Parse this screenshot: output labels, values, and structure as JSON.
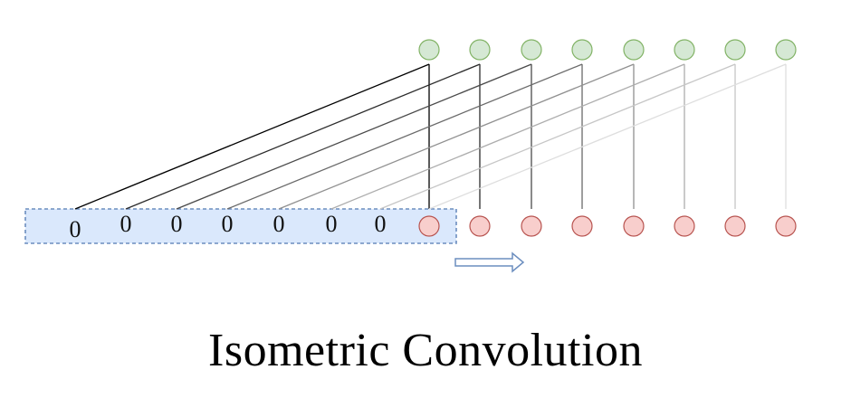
{
  "title": "Isometric Convolution",
  "padding_values": [
    "0",
    "0",
    "0",
    "0",
    "0",
    "0",
    "0"
  ],
  "input_node_count": 8,
  "output_node_count": 8,
  "colors": {
    "output_fill": "#d5e8d4",
    "output_stroke": "#82b366",
    "input_fill": "#f8cecc",
    "input_stroke": "#b85450",
    "window_fill": "#dae8fc",
    "window_stroke": "#6c8ebf",
    "arrow_stroke": "#6c8ebf"
  }
}
